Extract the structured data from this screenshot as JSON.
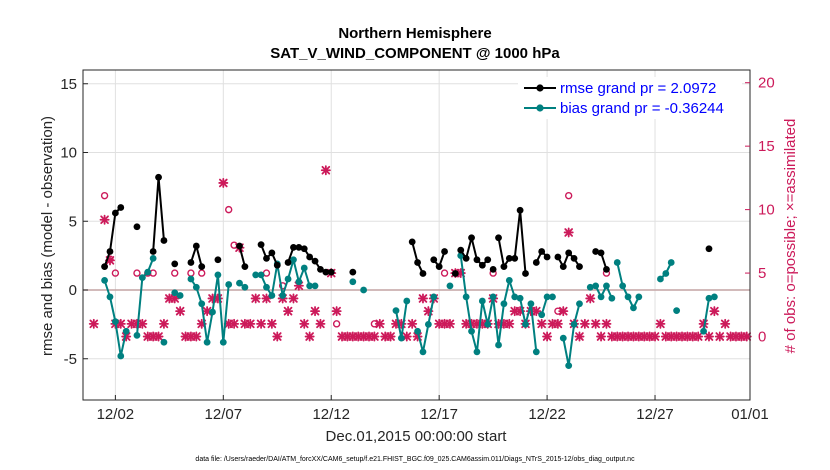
{
  "chart_data": {
    "type": "line",
    "title": "Northern Hemisphere",
    "subtitle": "SAT_V_WIND_COMPONENT @ 1000 hPa",
    "xlabel": "Dec.01,2015 00:00:00 start",
    "ylabel": "rmse and bias (model - observation)",
    "y2label": "# of obs: o=possible; ×=assimilated",
    "footnote": "data file: /Users/raeder/DAI/ATM_forcXX/CAM6_setup/f.e21.FHIST_BGC.f09_025.CAM6assim.011/Diags_NTrS_2015-12/obs_diag_output.nc",
    "xlim": [
      0.5,
      31.4
    ],
    "ylim": [
      -8,
      16
    ],
    "y2lim": [
      -5,
      21
    ],
    "x_tick_labels": [
      {
        "x": 2,
        "label": "12/02"
      },
      {
        "x": 7,
        "label": "12/07"
      },
      {
        "x": 12,
        "label": "12/12"
      },
      {
        "x": 17,
        "label": "12/17"
      },
      {
        "x": 22,
        "label": "12/22"
      },
      {
        "x": 27,
        "label": "12/27"
      },
      {
        "x": 32,
        "label": "01/01"
      }
    ],
    "y_ticks": [
      -5,
      0,
      5,
      10,
      15
    ],
    "y2_ticks": [
      0,
      5,
      10,
      15,
      20
    ],
    "zero_line": 0,
    "legend": [
      {
        "name": "rmse grand pr = 2.0972",
        "color": "#000000"
      },
      {
        "name": "bias grand pr = -0.36244",
        "color": "#008080"
      }
    ],
    "colors": {
      "rmse": "#000000",
      "bias": "#008080",
      "obs": "#cc1a5a",
      "grid": "#e0e0e0",
      "zero": "#c4a4a4"
    },
    "rmse_segments": [
      [
        [
          1.5,
          1.7
        ],
        [
          1.75,
          2.8
        ],
        [
          2.0,
          5.6
        ],
        [
          2.25,
          6.0
        ]
      ],
      [
        [
          3.0,
          4.6
        ]
      ],
      [
        [
          3.75,
          2.8
        ],
        [
          4.0,
          8.2
        ],
        [
          4.25,
          3.6
        ]
      ],
      [
        [
          4.75,
          1.9
        ]
      ],
      [
        [
          5.5,
          2.0
        ],
        [
          5.75,
          3.2
        ],
        [
          6.0,
          1.7
        ]
      ],
      [
        [
          6.75,
          2.2
        ]
      ],
      [
        [
          7.75,
          3.2
        ],
        [
          8.0,
          1.7
        ]
      ],
      [
        [
          8.75,
          3.3
        ],
        [
          9.0,
          2.3
        ],
        [
          9.25,
          2.7
        ],
        [
          9.5,
          1.8
        ]
      ],
      [
        [
          10.0,
          2.0
        ],
        [
          10.25,
          3.1
        ],
        [
          10.5,
          3.1
        ],
        [
          10.75,
          3.0
        ],
        [
          11.0,
          2.4
        ],
        [
          11.25,
          2.1
        ],
        [
          11.5,
          1.5
        ],
        [
          11.75,
          1.3
        ],
        [
          12.0,
          1.3
        ]
      ],
      [
        [
          13.0,
          1.3
        ]
      ],
      [
        [
          15.75,
          3.5
        ],
        [
          16.0,
          2.0
        ],
        [
          16.25,
          1.2
        ]
      ],
      [
        [
          16.75,
          2.2
        ],
        [
          17.0,
          1.7
        ],
        [
          17.25,
          2.8
        ]
      ],
      [
        [
          18.0,
          2.9
        ],
        [
          18.25,
          2.3
        ],
        [
          18.5,
          3.8
        ],
        [
          18.75,
          2.2
        ],
        [
          19.0,
          1.8
        ],
        [
          19.25,
          2.2
        ]
      ],
      [
        [
          19.75,
          3.8
        ],
        [
          20.0,
          1.7
        ],
        [
          20.25,
          2.3
        ]
      ],
      [
        [
          20.5,
          2.3
        ],
        [
          20.75,
          5.8
        ],
        [
          21.0,
          1.2
        ]
      ],
      [
        [
          21.5,
          2.0
        ],
        [
          21.75,
          2.8
        ],
        [
          22.0,
          2.4
        ]
      ],
      [
        [
          22.5,
          2.4
        ],
        [
          22.75,
          1.7
        ],
        [
          23.0,
          2.7
        ],
        [
          23.25,
          2.3
        ],
        [
          23.5,
          1.7
        ]
      ],
      [
        [
          17.75,
          1.2
        ]
      ],
      [
        [
          19.5,
          1.5
        ]
      ],
      [
        [
          24.25,
          2.8
        ],
        [
          24.5,
          2.7
        ],
        [
          24.75,
          1.5
        ]
      ],
      [
        [
          29.5,
          3.0
        ]
      ]
    ],
    "bias_segments": [
      [
        [
          1.5,
          0.7
        ],
        [
          1.75,
          -0.5
        ],
        [
          2.0,
          -2.3
        ],
        [
          2.25,
          -4.8
        ],
        [
          2.5,
          -3.0
        ]
      ],
      [
        [
          3.0,
          -3.3
        ],
        [
          3.25,
          0.9
        ],
        [
          3.5,
          1.3
        ],
        [
          3.75,
          2.3
        ]
      ],
      [
        [
          4.25,
          -3.8
        ]
      ],
      [
        [
          4.75,
          -0.2
        ],
        [
          5.0,
          -0.4
        ]
      ],
      [
        [
          5.5,
          0.8
        ],
        [
          5.75,
          0.2
        ],
        [
          6.0,
          -1.0
        ],
        [
          6.25,
          -3.8
        ],
        [
          6.5,
          -1.6
        ],
        [
          6.75,
          1.1
        ],
        [
          7.0,
          -3.8
        ],
        [
          7.25,
          0.4
        ]
      ],
      [
        [
          7.75,
          0.5
        ],
        [
          8.0,
          0.2
        ]
      ],
      [
        [
          8.5,
          1.1
        ],
        [
          8.75,
          1.1
        ],
        [
          9.0,
          0.2
        ],
        [
          9.25,
          -0.4
        ],
        [
          9.5,
          1.9
        ],
        [
          9.75,
          -0.4
        ],
        [
          10.0,
          0.8
        ],
        [
          10.25,
          2.2
        ],
        [
          10.5,
          0.6
        ],
        [
          10.75,
          1.6
        ],
        [
          11.0,
          0.3
        ],
        [
          11.25,
          0.3
        ]
      ],
      [
        [
          13.0,
          0.6
        ]
      ],
      [
        [
          13.5,
          0.0
        ]
      ],
      [
        [
          15.0,
          -1.5
        ],
        [
          15.25,
          -3.5
        ],
        [
          15.5,
          -0.8
        ]
      ],
      [
        [
          16.0,
          -3.0
        ],
        [
          16.25,
          -4.5
        ],
        [
          16.5,
          -2.5
        ],
        [
          16.75,
          -0.5
        ]
      ],
      [
        [
          17.5,
          0.3
        ]
      ],
      [
        [
          18.0,
          2.5
        ],
        [
          18.25,
          -0.5
        ],
        [
          18.5,
          -3.0
        ],
        [
          18.75,
          -4.5
        ],
        [
          19.0,
          -0.8
        ],
        [
          19.25,
          -2.5
        ],
        [
          19.5,
          -0.5
        ],
        [
          19.75,
          -4.0
        ],
        [
          20.0,
          -1.0
        ],
        [
          20.25,
          0.7
        ],
        [
          20.5,
          -0.5
        ],
        [
          20.75,
          -0.6
        ],
        [
          21.0,
          -2.5
        ],
        [
          21.25,
          -1.0
        ],
        [
          21.5,
          -4.5
        ]
      ],
      [
        [
          21.75,
          -1.8
        ],
        [
          22.0,
          -0.5
        ],
        [
          22.25,
          -0.5
        ]
      ],
      [
        [
          22.75,
          -3.5
        ],
        [
          23.0,
          -5.5
        ],
        [
          23.25,
          -2.5
        ],
        [
          23.5,
          -1.0
        ]
      ],
      [
        [
          24.0,
          0.2
        ],
        [
          24.25,
          0.3
        ],
        [
          24.5,
          -0.5
        ],
        [
          24.75,
          0.3
        ],
        [
          25.0,
          -0.6
        ]
      ],
      [
        [
          25.25,
          2.0
        ],
        [
          25.5,
          0.3
        ],
        [
          25.75,
          -0.5
        ],
        [
          26.0,
          -1.3
        ],
        [
          26.25,
          -0.5
        ]
      ],
      [
        [
          27.25,
          0.8
        ],
        [
          27.5,
          1.2
        ],
        [
          27.75,
          2.0
        ]
      ],
      [
        [
          28.0,
          -1.5
        ]
      ],
      [
        [
          29.25,
          -3.0
        ],
        [
          29.5,
          -0.6
        ]
      ],
      [
        [
          29.75,
          -0.5
        ]
      ]
    ],
    "obs_possible": [
      [
        1.5,
        11.1
      ],
      [
        1.75,
        6.1
      ],
      [
        2.0,
        5.0
      ],
      [
        3.0,
        5.0
      ],
      [
        3.5,
        5.0
      ],
      [
        3.75,
        5.0
      ],
      [
        4.75,
        5.0
      ],
      [
        5.5,
        5.0
      ],
      [
        6.0,
        5.0
      ],
      [
        7.25,
        10.0
      ],
      [
        7.5,
        7.2
      ],
      [
        9.0,
        5.0
      ],
      [
        9.75,
        4.0
      ],
      [
        12.25,
        1.0
      ],
      [
        14.0,
        1.0
      ],
      [
        17.25,
        5.0
      ],
      [
        19.5,
        5.0
      ],
      [
        22.5,
        2.0
      ],
      [
        23.0,
        11.1
      ],
      [
        24.75,
        5.0
      ]
    ],
    "obs_assimilated": [
      [
        1.5,
        9.2
      ],
      [
        1.75,
        6.0
      ],
      [
        1.0,
        1.0
      ],
      [
        2.0,
        1.0
      ],
      [
        2.25,
        1.0
      ],
      [
        2.5,
        0.0
      ],
      [
        2.75,
        1.0
      ],
      [
        3.0,
        1.0
      ],
      [
        3.25,
        1.0
      ],
      [
        3.5,
        0.0
      ],
      [
        3.75,
        0.0
      ],
      [
        4.0,
        0.0
      ],
      [
        4.25,
        1.0
      ],
      [
        4.5,
        3.0
      ],
      [
        4.75,
        3.0
      ],
      [
        5.0,
        2.0
      ],
      [
        5.25,
        0.0
      ],
      [
        5.5,
        0.0
      ],
      [
        5.75,
        0.0
      ],
      [
        6.0,
        1.0
      ],
      [
        6.25,
        2.0
      ],
      [
        6.5,
        3.0
      ],
      [
        6.75,
        3.0
      ],
      [
        7.0,
        12.1
      ],
      [
        7.25,
        1.0
      ],
      [
        7.5,
        1.0
      ],
      [
        7.75,
        7.0
      ],
      [
        8.0,
        1.0
      ],
      [
        8.25,
        1.0
      ],
      [
        8.5,
        3.0
      ],
      [
        8.75,
        1.0
      ],
      [
        9.0,
        3.0
      ],
      [
        9.25,
        1.0
      ],
      [
        9.5,
        0.0
      ],
      [
        9.75,
        3.0
      ],
      [
        10.0,
        2.0
      ],
      [
        10.25,
        3.0
      ],
      [
        10.5,
        4.0
      ],
      [
        10.75,
        1.0
      ],
      [
        11.0,
        0.0
      ],
      [
        11.25,
        2.0
      ],
      [
        11.5,
        1.0
      ],
      [
        11.75,
        13.1
      ],
      [
        12.0,
        5.0
      ],
      [
        12.25,
        2.0
      ],
      [
        12.5,
        0.0
      ],
      [
        12.75,
        0.0
      ],
      [
        13.0,
        0.0
      ],
      [
        13.25,
        0.0
      ],
      [
        13.5,
        0.0
      ],
      [
        13.75,
        0.0
      ],
      [
        14.0,
        0.0
      ],
      [
        14.25,
        1.0
      ],
      [
        14.5,
        0.0
      ],
      [
        14.75,
        0.0
      ],
      [
        15.0,
        1.0
      ],
      [
        15.25,
        1.0
      ],
      [
        15.5,
        0.0
      ],
      [
        15.75,
        1.0
      ],
      [
        16.0,
        0.0
      ],
      [
        16.25,
        3.0
      ],
      [
        16.5,
        2.0
      ],
      [
        16.75,
        3.0
      ],
      [
        17.0,
        1.0
      ],
      [
        17.25,
        1.0
      ],
      [
        17.5,
        1.0
      ],
      [
        17.75,
        5.0
      ],
      [
        18.0,
        5.0
      ],
      [
        18.25,
        1.0
      ],
      [
        18.5,
        1.0
      ],
      [
        18.75,
        1.0
      ],
      [
        19.0,
        1.0
      ],
      [
        19.25,
        1.0
      ],
      [
        19.5,
        3.0
      ],
      [
        19.75,
        1.0
      ],
      [
        20.0,
        1.0
      ],
      [
        20.25,
        1.0
      ],
      [
        20.5,
        2.0
      ],
      [
        20.75,
        2.0
      ],
      [
        21.0,
        1.0
      ],
      [
        21.25,
        2.0
      ],
      [
        21.5,
        2.0
      ],
      [
        21.75,
        1.0
      ],
      [
        22.0,
        0.0
      ],
      [
        22.25,
        1.0
      ],
      [
        22.5,
        1.0
      ],
      [
        22.75,
        2.0
      ],
      [
        23.0,
        8.2
      ],
      [
        23.25,
        1.0
      ],
      [
        23.5,
        0.0
      ],
      [
        23.75,
        1.0
      ],
      [
        24.0,
        3.0
      ],
      [
        24.25,
        1.0
      ],
      [
        24.5,
        0.0
      ],
      [
        24.75,
        1.0
      ],
      [
        25.0,
        0.0
      ],
      [
        25.25,
        0.0
      ],
      [
        25.5,
        0.0
      ],
      [
        25.75,
        0.0
      ],
      [
        26.0,
        0.0
      ],
      [
        26.25,
        0.0
      ],
      [
        26.5,
        0.0
      ],
      [
        26.75,
        0.0
      ],
      [
        27.0,
        0.0
      ],
      [
        27.25,
        1.0
      ],
      [
        27.5,
        0.0
      ],
      [
        27.75,
        0.0
      ],
      [
        28.0,
        0.0
      ],
      [
        28.25,
        0.0
      ],
      [
        28.5,
        0.0
      ],
      [
        28.75,
        0.0
      ],
      [
        29.0,
        0.0
      ],
      [
        29.25,
        1.0
      ],
      [
        29.5,
        0.0
      ],
      [
        29.75,
        2.0
      ],
      [
        30.0,
        0.0
      ],
      [
        30.25,
        1.0
      ],
      [
        30.5,
        0.0
      ],
      [
        30.75,
        0.0
      ],
      [
        31.0,
        0.0
      ],
      [
        31.25,
        0.0
      ]
    ]
  }
}
